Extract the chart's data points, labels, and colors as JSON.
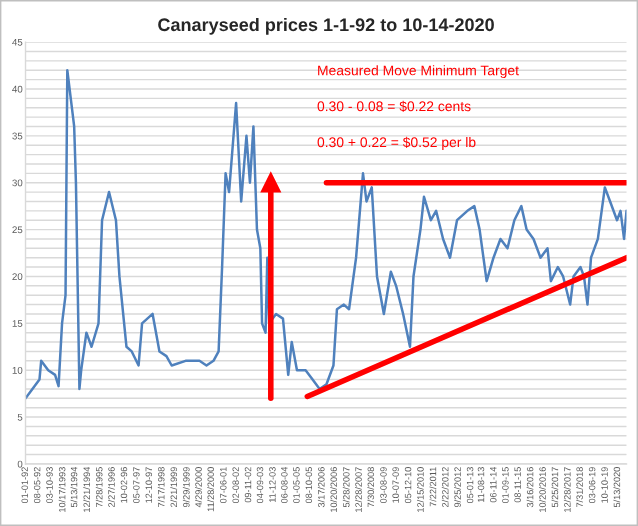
{
  "chart_data": {
    "type": "line",
    "title": "Canaryseed prices 1-1-92 to 10-14-2020",
    "annotations": [
      "Measured Move Minimum Target",
      "0.30 - 0.08 = $0.22 cents",
      "0.30 + 0.22 = $0.52 per lb"
    ],
    "series": [
      {
        "color": "#4f81bd",
        "x": [
          "1992-01",
          "1992-05",
          "1992-09",
          "1992-10",
          "1993-02",
          "1993-06",
          "1993-08",
          "1993-10",
          "1993-12",
          "1994-01",
          "1994-05",
          "1994-06",
          "1994-08",
          "1994-09",
          "1994-12",
          "1995-03",
          "1995-07",
          "1995-09",
          "1996-01",
          "1996-05",
          "1996-07",
          "1996-11",
          "1997-02",
          "1997-06",
          "1997-08",
          "1998-02",
          "1998-06",
          "1998-10",
          "1999-01",
          "1999-09",
          "2000-05",
          "2000-09",
          "2001-01",
          "2001-04",
          "2001-06",
          "2001-08",
          "2001-10",
          "2002-02",
          "2002-05",
          "2002-08",
          "2002-10",
          "2002-12",
          "2003-02",
          "2003-04",
          "2003-05",
          "2003-07",
          "2003-08",
          "2003-09",
          "2004-01",
          "2004-05",
          "2004-08",
          "2004-10",
          "2005-01",
          "2005-06",
          "2005-10",
          "2006-02",
          "2006-06",
          "2006-10",
          "2006-12",
          "2007-04",
          "2007-07",
          "2007-11",
          "2008-03",
          "2008-05",
          "2008-08",
          "2008-11",
          "2009-03",
          "2009-07",
          "2009-10",
          "2010-02",
          "2010-06",
          "2010-08",
          "2010-12",
          "2011-02",
          "2011-06",
          "2011-09",
          "2012-01",
          "2012-05",
          "2012-09",
          "2013-03",
          "2013-07",
          "2013-10",
          "2014-02",
          "2014-06",
          "2014-10",
          "2015-02",
          "2015-06",
          "2015-10",
          "2016-01",
          "2016-05",
          "2016-09",
          "2017-01",
          "2017-03",
          "2017-07",
          "2017-10",
          "2018-02",
          "2018-04",
          "2018-08",
          "2018-10",
          "2018-12",
          "2019-02",
          "2019-06",
          "2019-10",
          "2020-01",
          "2020-05",
          "2020-07",
          "2020-09",
          "2020-10-14"
        ],
        "values": [
          7,
          8,
          9,
          11,
          10,
          9.5,
          8.3,
          15,
          18,
          42,
          36,
          30,
          8,
          10,
          14,
          12.5,
          15,
          26,
          29,
          26,
          20,
          12.5,
          12,
          10.5,
          15,
          16,
          12,
          11.5,
          10.5,
          11,
          11,
          10.5,
          11,
          12,
          21,
          31,
          29,
          38.5,
          28,
          35,
          30,
          36,
          25,
          23,
          15,
          14,
          22,
          15,
          16,
          15.5,
          9.5,
          13,
          10,
          10,
          9,
          8,
          8.5,
          10.5,
          16.5,
          17,
          16.5,
          22,
          31,
          28,
          29.5,
          20,
          16,
          20.5,
          19,
          16,
          12.5,
          20,
          25,
          28.5,
          26,
          27,
          24,
          22,
          26,
          27,
          27.5,
          25,
          19.5,
          22,
          24,
          23,
          26,
          27.5,
          25,
          24,
          22,
          23,
          19.5,
          21,
          20,
          17,
          20,
          21,
          20,
          17,
          22,
          24,
          29.5,
          28,
          26,
          27,
          24,
          27
        ]
      },
      {
        "color": "#ff0000",
        "x": [
          "2006-06",
          "2020-10-14"
        ],
        "values": [
          30,
          30
        ]
      },
      {
        "color": "#ff0000",
        "x": [
          "2005-07",
          "2020-10-14"
        ],
        "values": [
          7.2,
          22
        ]
      },
      {
        "color": "#ff0000",
        "x": [
          "2003-10",
          "2003-10"
        ],
        "values": [
          7,
          30
        ],
        "marker": "triangle"
      }
    ],
    "xlim": [
      "1992-01-01",
      "2020-10-14"
    ],
    "xticks": [
      {
        "value": "1992-01-01",
        "label": "01-01-92"
      },
      {
        "value": "1992-08-05",
        "label": "08-05-92"
      },
      {
        "value": "1993-03-10",
        "label": "03-10-93"
      },
      {
        "value": "1993-10-17",
        "label": "10/17/1993"
      },
      {
        "value": "1994-05-13",
        "label": "5/13/1994"
      },
      {
        "value": "1994-12-21",
        "label": "12/21/1994"
      },
      {
        "value": "1995-07-28",
        "label": "7/28/1995"
      },
      {
        "value": "1996-02-27",
        "label": "2/27/1996"
      },
      {
        "value": "1996-10-02",
        "label": "10-02-96"
      },
      {
        "value": "1997-05-07",
        "label": "05-07-97"
      },
      {
        "value": "1997-12-10",
        "label": "12-10-97"
      },
      {
        "value": "1998-07-17",
        "label": "7/17/1998"
      },
      {
        "value": "1999-02-21",
        "label": "2/21/1999"
      },
      {
        "value": "1999-09-29",
        "label": "9/29/1999"
      },
      {
        "value": "2000-04-29",
        "label": "4/29/2000"
      },
      {
        "value": "2000-11-28",
        "label": "11/28/2000"
      },
      {
        "value": "2001-07-06",
        "label": "07-06-01"
      },
      {
        "value": "2002-02-08",
        "label": "02-08-02"
      },
      {
        "value": "2002-09-11",
        "label": "09-11-02"
      },
      {
        "value": "2003-04-09",
        "label": "04-09-03"
      },
      {
        "value": "2003-11-12",
        "label": "11-12-03"
      },
      {
        "value": "2004-06-08",
        "label": "06-08-04"
      },
      {
        "value": "2005-01-05",
        "label": "01-05-05"
      },
      {
        "value": "2005-08-10",
        "label": "08-10-05"
      },
      {
        "value": "2006-03-17",
        "label": "3/17/2006"
      },
      {
        "value": "2006-10-20",
        "label": "10/20/2006"
      },
      {
        "value": "2007-05-28",
        "label": "5/28/2007"
      },
      {
        "value": "2007-12-28",
        "label": "12/28/2007"
      },
      {
        "value": "2008-07-30",
        "label": "7/30/2008"
      },
      {
        "value": "2009-03-08",
        "label": "03-08-09"
      },
      {
        "value": "2009-10-07",
        "label": "10-07-09"
      },
      {
        "value": "2010-05-12",
        "label": "05-12-10"
      },
      {
        "value": "2010-12-15",
        "label": "12/15/2010"
      },
      {
        "value": "2011-07-22",
        "label": "7/22/2011"
      },
      {
        "value": "2012-02-22",
        "label": "2/22/2012"
      },
      {
        "value": "2012-09-25",
        "label": "9/25/2012"
      },
      {
        "value": "2013-05-01",
        "label": "05-01-13"
      },
      {
        "value": "2013-11-08",
        "label": "11-08-13"
      },
      {
        "value": "2014-06-11",
        "label": "06-11-14"
      },
      {
        "value": "2015-01-09",
        "label": "01-09-15"
      },
      {
        "value": "2015-08-11",
        "label": "08-11-15"
      },
      {
        "value": "2016-03-16",
        "label": "3/16/2016"
      },
      {
        "value": "2016-10-20",
        "label": "10/20/2016"
      },
      {
        "value": "2017-05-25",
        "label": "5/25/2017"
      },
      {
        "value": "2017-12-28",
        "label": "12/28/2017"
      },
      {
        "value": "2018-07-31",
        "label": "7/31/2018"
      },
      {
        "value": "2019-03-06",
        "label": "03-06-19"
      },
      {
        "value": "2019-10-10",
        "label": "10-10-19"
      },
      {
        "value": "2020-05-13",
        "label": "5/13/2020"
      }
    ],
    "ylim": [
      0,
      45
    ],
    "yticks": [
      0,
      {
        "value": 1,
        "label": null
      },
      {
        "value": 2,
        "label": null
      },
      {
        "value": 3,
        "label": null
      },
      {
        "value": 4,
        "label": null
      },
      5,
      {
        "value": 6,
        "label": null
      },
      {
        "value": 7,
        "label": null
      },
      {
        "value": 8,
        "label": null
      },
      {
        "value": 9,
        "label": null
      },
      10,
      {
        "value": 11,
        "label": null
      },
      {
        "value": 12,
        "label": null
      },
      {
        "value": 13,
        "label": null
      },
      {
        "value": 14,
        "label": null
      },
      15,
      {
        "value": 16,
        "label": null
      },
      {
        "value": 17,
        "label": null
      },
      {
        "value": 18,
        "label": null
      },
      {
        "value": 19,
        "label": null
      },
      20,
      {
        "value": 21,
        "label": null
      },
      {
        "value": 22,
        "label": null
      },
      {
        "value": 23,
        "label": null
      },
      {
        "value": 24,
        "label": null
      },
      25,
      {
        "value": 26,
        "label": null
      },
      {
        "value": 27,
        "label": null
      },
      {
        "value": 28,
        "label": null
      },
      {
        "value": 29,
        "label": null
      },
      30,
      {
        "value": 31,
        "label": null
      },
      {
        "value": 32,
        "label": null
      },
      {
        "value": 33,
        "label": null
      },
      {
        "value": 34,
        "label": null
      },
      35,
      {
        "value": 36,
        "label": null
      },
      {
        "value": 37,
        "label": null
      },
      {
        "value": 38,
        "label": null
      },
      {
        "value": 39,
        "label": null
      },
      40,
      {
        "value": 41,
        "label": null
      },
      {
        "value": 42,
        "label": null
      },
      {
        "value": 43,
        "label": null
      },
      {
        "value": 44,
        "label": null
      },
      45
    ],
    "grid": "y"
  }
}
